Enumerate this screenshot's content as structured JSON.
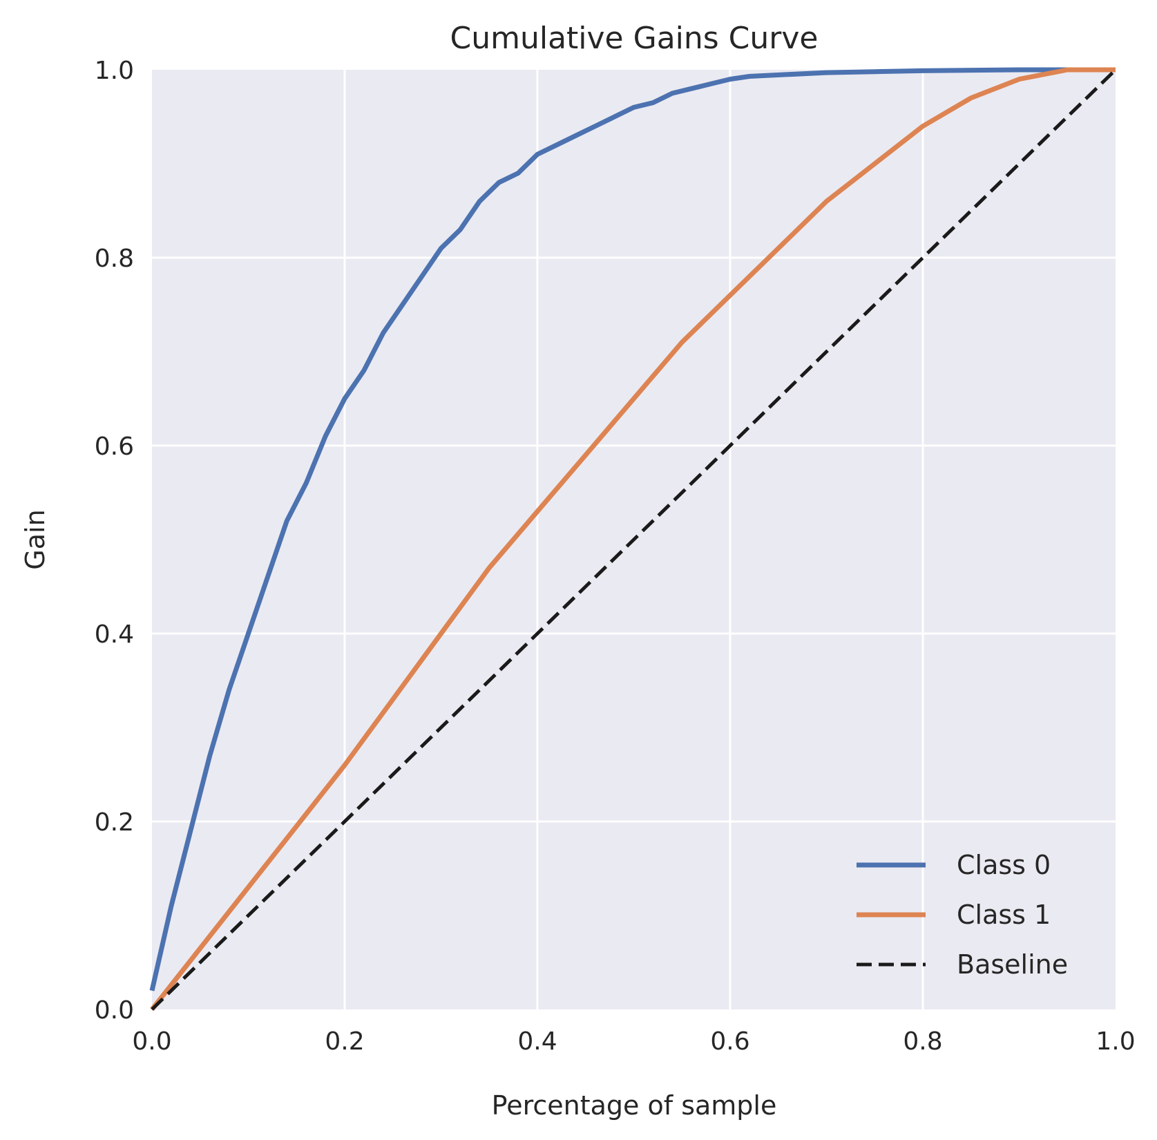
{
  "chart_data": {
    "type": "line",
    "title": "Cumulative Gains Curve",
    "xlabel": "Percentage of sample",
    "ylabel": "Gain",
    "xlim": [
      0.0,
      1.0
    ],
    "ylim": [
      0.0,
      1.0
    ],
    "xticks": [
      "0.0",
      "0.2",
      "0.4",
      "0.6",
      "0.8",
      "1.0"
    ],
    "yticks": [
      "0.0",
      "0.2",
      "0.4",
      "0.6",
      "0.8",
      "1.0"
    ],
    "grid": true,
    "legend_position": "lower-right",
    "background": "#eaeaf2",
    "series": [
      {
        "name": "Class 0",
        "color": "#4c72b0",
        "style": "solid",
        "x": [
          0.0,
          0.02,
          0.04,
          0.06,
          0.08,
          0.1,
          0.12,
          0.14,
          0.16,
          0.18,
          0.2,
          0.22,
          0.24,
          0.26,
          0.28,
          0.3,
          0.32,
          0.34,
          0.36,
          0.38,
          0.4,
          0.42,
          0.44,
          0.46,
          0.48,
          0.5,
          0.52,
          0.54,
          0.56,
          0.58,
          0.6,
          0.62,
          0.66,
          0.7,
          0.75,
          0.8,
          0.9,
          1.0
        ],
        "y": [
          0.02,
          0.11,
          0.19,
          0.27,
          0.34,
          0.4,
          0.46,
          0.52,
          0.56,
          0.61,
          0.65,
          0.68,
          0.72,
          0.75,
          0.78,
          0.81,
          0.83,
          0.86,
          0.88,
          0.89,
          0.91,
          0.92,
          0.93,
          0.94,
          0.95,
          0.96,
          0.965,
          0.975,
          0.98,
          0.985,
          0.99,
          0.993,
          0.995,
          0.997,
          0.998,
          0.999,
          1.0,
          1.0
        ]
      },
      {
        "name": "Class 1",
        "color": "#dd8452",
        "style": "solid",
        "x": [
          0.0,
          0.05,
          0.1,
          0.15,
          0.2,
          0.25,
          0.3,
          0.35,
          0.4,
          0.45,
          0.5,
          0.55,
          0.6,
          0.65,
          0.7,
          0.75,
          0.8,
          0.85,
          0.9,
          0.95,
          1.0
        ],
        "y": [
          0.0,
          0.065,
          0.13,
          0.195,
          0.26,
          0.33,
          0.4,
          0.47,
          0.53,
          0.59,
          0.65,
          0.71,
          0.76,
          0.81,
          0.86,
          0.9,
          0.94,
          0.97,
          0.99,
          1.0,
          1.0
        ]
      },
      {
        "name": "Baseline",
        "color": "#1a1a1a",
        "style": "dashed",
        "x": [
          0.0,
          1.0
        ],
        "y": [
          0.0,
          1.0
        ]
      }
    ]
  }
}
